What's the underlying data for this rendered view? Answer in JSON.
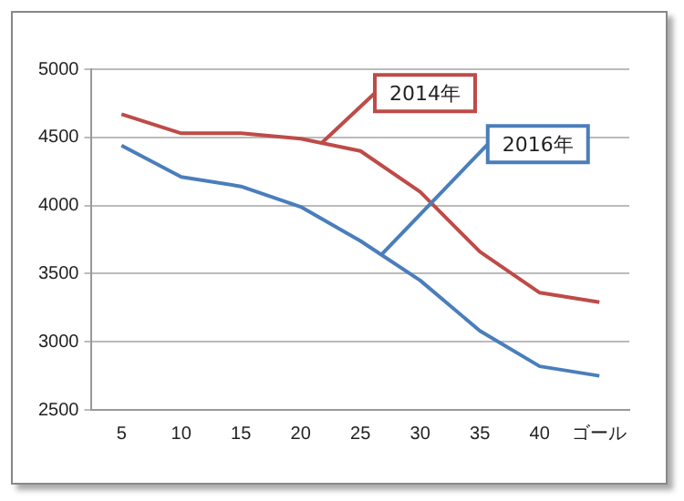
{
  "chart_data": {
    "type": "line",
    "categories": [
      "5",
      "10",
      "15",
      "20",
      "25",
      "30",
      "35",
      "40",
      "ゴール"
    ],
    "series": [
      {
        "name": "2014年",
        "color": "#be4b48",
        "values": [
          4670,
          4530,
          4530,
          4490,
          4400,
          4100,
          3660,
          3360,
          3290
        ]
      },
      {
        "name": "2016年",
        "color": "#4a7ebb",
        "values": [
          4440,
          4210,
          4140,
          3990,
          3740,
          3450,
          3080,
          2820,
          2750
        ]
      }
    ],
    "ylim": [
      2500,
      5000
    ],
    "yticks": [
      2500,
      3000,
      3500,
      4000,
      4500,
      5000
    ],
    "grid": "y",
    "legend": false,
    "marker": "none",
    "line_style": "solid"
  }
}
